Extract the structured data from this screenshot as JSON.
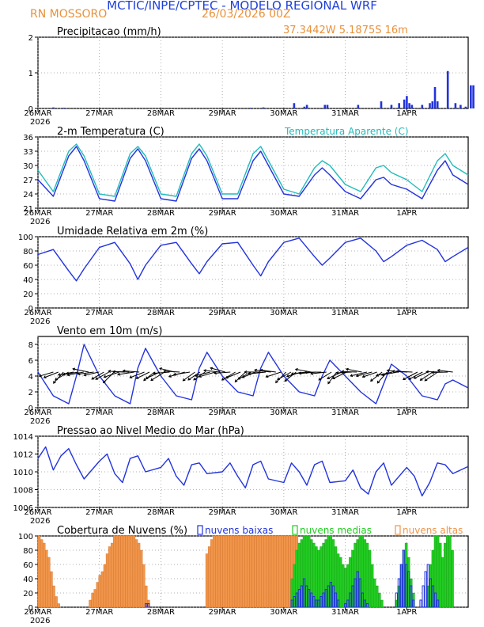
{
  "header": {
    "title": "MCTIC/INPE/CPTEC - MODELO REGIONAL WRF",
    "location": "RN MOSSORO",
    "run_date": "26/03/2026 00Z",
    "coords": "37.3442W 5.1875S 16m"
  },
  "colors": {
    "blue": "#2233dd",
    "cyan": "#22bbbb",
    "orange": "#f0954a",
    "green": "#22cc22",
    "header_blue": "#1f3fd9",
    "header_orange": "#e8913a",
    "grid": "#999999"
  },
  "time_axis": {
    "labels": [
      "26MAR",
      "27MAR",
      "28MAR",
      "29MAR",
      "30MAR",
      "31MAR",
      "1APR"
    ],
    "year": "2026",
    "hours_total": 168
  },
  "chart_data": [
    {
      "type": "bar",
      "id": "precip",
      "title": "Precipitacao (mm/h)",
      "ylim": [
        0,
        2
      ],
      "yticks": [
        0,
        1,
        2
      ],
      "bar_hours": [
        6,
        10,
        83,
        88,
        100,
        104,
        105,
        112,
        113,
        125,
        134,
        138,
        141,
        143,
        144,
        145,
        146,
        150,
        153,
        154,
        155,
        156,
        160,
        163,
        165,
        167,
        169,
        170
      ],
      "bar_values": [
        0.03,
        0.02,
        0.02,
        0.03,
        0.15,
        0.05,
        0.1,
        0.1,
        0.1,
        0.1,
        0.2,
        0.1,
        0.15,
        0.25,
        0.35,
        0.15,
        0.1,
        0.1,
        0.15,
        0.2,
        0.6,
        0.2,
        1.05,
        0.15,
        0.1,
        0.05,
        0.65,
        0.65
      ]
    },
    {
      "type": "line",
      "id": "temp",
      "title": "2-m Temperatura (C)",
      "legend": "Temperatura Aparente (C)",
      "ylim": [
        21,
        36
      ],
      "yticks": [
        21,
        24,
        27,
        30,
        33,
        36
      ],
      "x": [
        0,
        6,
        12,
        15,
        18,
        24,
        30,
        36,
        39,
        42,
        48,
        54,
        60,
        63,
        66,
        72,
        78,
        84,
        87,
        90,
        96,
        102,
        108,
        111,
        114,
        120,
        126,
        132,
        135,
        138,
        144,
        150,
        156,
        159,
        162,
        168
      ],
      "series": [
        {
          "name": "Temperatura",
          "color": "blue",
          "values": [
            27,
            23.5,
            32,
            34,
            31,
            23,
            22.5,
            31.5,
            33.5,
            31,
            23,
            22.5,
            31.5,
            33.5,
            31,
            23,
            23,
            31,
            33,
            30,
            24,
            23.5,
            28,
            29.5,
            28,
            24.5,
            23,
            27,
            27.5,
            26,
            25,
            23,
            29,
            31,
            28,
            26
          ]
        },
        {
          "name": "Temperatura Aparente",
          "color": "cyan",
          "values": [
            29,
            24.5,
            33,
            34.5,
            32,
            24,
            23.5,
            32.5,
            34,
            32,
            24,
            23.5,
            32.5,
            34.5,
            32,
            24,
            24,
            32.5,
            34,
            31,
            25,
            24,
            29.5,
            31,
            30,
            26,
            24.5,
            29.5,
            30,
            28.5,
            27,
            24.5,
            31,
            32.5,
            30,
            28
          ]
        }
      ]
    },
    {
      "type": "line",
      "id": "rh",
      "title": "Umidade Relativa em 2m (%)",
      "ylim": [
        0,
        100
      ],
      "yticks": [
        0,
        20,
        40,
        60,
        80,
        100
      ],
      "x": [
        0,
        6,
        12,
        15,
        18,
        24,
        30,
        36,
        39,
        42,
        48,
        54,
        60,
        63,
        66,
        72,
        78,
        84,
        87,
        90,
        96,
        102,
        108,
        111,
        114,
        120,
        126,
        132,
        135,
        138,
        144,
        150,
        156,
        159,
        162,
        168
      ],
      "series": [
        {
          "name": "Umidade",
          "color": "blue",
          "values": [
            75,
            82,
            52,
            38,
            55,
            85,
            92,
            62,
            40,
            60,
            88,
            92,
            62,
            48,
            65,
            90,
            92,
            60,
            45,
            65,
            92,
            98,
            72,
            60,
            70,
            92,
            98,
            80,
            65,
            72,
            88,
            95,
            82,
            65,
            72,
            85
          ]
        }
      ]
    },
    {
      "type": "line",
      "id": "wind",
      "title": "Vento em 10m (m/s)",
      "ylim": [
        0,
        9
      ],
      "yticks": [
        0,
        2,
        4,
        6,
        8
      ],
      "x": [
        0,
        6,
        12,
        15,
        18,
        24,
        30,
        36,
        39,
        42,
        48,
        54,
        60,
        63,
        66,
        72,
        78,
        84,
        87,
        90,
        96,
        102,
        108,
        111,
        114,
        120,
        126,
        132,
        135,
        138,
        144,
        150,
        156,
        159,
        162,
        168
      ],
      "series": [
        {
          "name": "Velocidade",
          "color": "blue",
          "values": [
            4.5,
            1.5,
            0.5,
            4,
            8,
            4,
            1.5,
            0.5,
            5,
            7.5,
            4,
            1.5,
            1,
            5,
            7,
            4,
            2,
            1.5,
            5,
            7,
            4,
            2,
            1.5,
            4,
            6,
            4,
            2,
            0.5,
            3,
            5.5,
            4,
            1.5,
            1,
            3,
            3.5,
            2.5
          ]
        }
      ],
      "vector_speed": [
        4.2,
        4.5,
        4.8,
        4.6,
        4.4,
        4.5,
        4.7,
        4.6,
        4.5,
        4.3
      ],
      "vector_dir_deg": [
        200,
        190,
        210,
        195,
        185,
        200,
        215,
        190,
        205,
        195
      ]
    },
    {
      "type": "line",
      "id": "pressure",
      "title": "Pressao ao Nivel Medio do Mar (hPa)",
      "ylim": [
        1006,
        1014
      ],
      "yticks": [
        1006,
        1008,
        1010,
        1012,
        1014
      ],
      "x": [
        0,
        3,
        6,
        9,
        12,
        15,
        18,
        24,
        27,
        30,
        33,
        36,
        39,
        42,
        48,
        51,
        54,
        57,
        60,
        63,
        66,
        72,
        75,
        78,
        81,
        84,
        87,
        90,
        96,
        99,
        102,
        105,
        108,
        111,
        114,
        120,
        123,
        126,
        129,
        132,
        135,
        138,
        144,
        147,
        150,
        153,
        156,
        159,
        162,
        168
      ],
      "series": [
        {
          "name": "Pressao",
          "color": "blue",
          "values": [
            1011.5,
            1012.8,
            1010.2,
            1011.8,
            1012.6,
            1010.8,
            1009.2,
            1011.2,
            1012,
            1009.8,
            1008.8,
            1011.5,
            1011.8,
            1010,
            1010.5,
            1011.5,
            1009.5,
            1008.5,
            1010.8,
            1011,
            1009.8,
            1010,
            1011,
            1009.5,
            1008.2,
            1010.8,
            1011.2,
            1009.2,
            1008.8,
            1011,
            1010,
            1008.5,
            1010.8,
            1011.2,
            1008.8,
            1009,
            1010.2,
            1008.2,
            1007.5,
            1010,
            1011,
            1008.5,
            1010.5,
            1009.5,
            1007.3,
            1008.8,
            1011,
            1010.8,
            1009.8,
            1010.6
          ]
        }
      ]
    },
    {
      "type": "bar",
      "id": "clouds",
      "title": "Cobertura de Nuvens (%)",
      "legend": [
        "nuvens baixas",
        "nuvens medias",
        "nuvens altas"
      ],
      "ylim": [
        0,
        100
      ],
      "yticks": [
        0,
        20,
        40,
        60,
        80,
        100
      ],
      "high_values": [
        100,
        95,
        90,
        80,
        70,
        50,
        30,
        15,
        5,
        0,
        0,
        0,
        0,
        0,
        0,
        0,
        0,
        0,
        0,
        0,
        0,
        10,
        20,
        25,
        35,
        45,
        50,
        60,
        75,
        85,
        90,
        100,
        100,
        100,
        100,
        100,
        100,
        100,
        100,
        100,
        95,
        90,
        80,
        60,
        30,
        10,
        0,
        0,
        0,
        0,
        0,
        0,
        0,
        0,
        0,
        0,
        0,
        0,
        0,
        0,
        0,
        0,
        0,
        0,
        0,
        0,
        0,
        0,
        0,
        75,
        85,
        95,
        100,
        100,
        100,
        100,
        100,
        100,
        100,
        100,
        100,
        100,
        100,
        100,
        100,
        100,
        100,
        100,
        100,
        100,
        100,
        100,
        100,
        100,
        100,
        100,
        100,
        100,
        100,
        100,
        100,
        100,
        100,
        100,
        100,
        100,
        100,
        80,
        60,
        40,
        30,
        25,
        20,
        15,
        10,
        10,
        15,
        20,
        30,
        40,
        60,
        70,
        50,
        30,
        20,
        10,
        5,
        5,
        0,
        0,
        0,
        0,
        0,
        0,
        0,
        0,
        0,
        0,
        0,
        0,
        0,
        0,
        0,
        0,
        0,
        0,
        0,
        0,
        0,
        0,
        0,
        0,
        0,
        0,
        0,
        0,
        0,
        0,
        0,
        0,
        0,
        0,
        0,
        0,
        0,
        0,
        0,
        0,
        0,
        0,
        0,
        0,
        0,
        0,
        0,
        0,
        0
      ],
      "mid_values": [
        0,
        0,
        0,
        0,
        0,
        0,
        0,
        0,
        0,
        0,
        0,
        0,
        0,
        0,
        0,
        0,
        0,
        0,
        0,
        0,
        0,
        0,
        0,
        0,
        0,
        0,
        0,
        0,
        0,
        0,
        0,
        0,
        0,
        0,
        0,
        0,
        0,
        0,
        0,
        0,
        0,
        0,
        0,
        0,
        0,
        0,
        0,
        0,
        0,
        0,
        0,
        0,
        0,
        0,
        0,
        0,
        0,
        0,
        0,
        0,
        0,
        0,
        0,
        0,
        0,
        0,
        0,
        0,
        0,
        0,
        0,
        0,
        0,
        0,
        0,
        0,
        0,
        0,
        0,
        0,
        0,
        0,
        0,
        0,
        0,
        0,
        0,
        0,
        0,
        0,
        0,
        0,
        0,
        0,
        0,
        0,
        0,
        0,
        0,
        0,
        0,
        0,
        0,
        0,
        40,
        60,
        80,
        90,
        95,
        100,
        100,
        100,
        95,
        90,
        85,
        80,
        85,
        90,
        95,
        100,
        100,
        95,
        85,
        75,
        70,
        60,
        55,
        60,
        70,
        80,
        90,
        95,
        100,
        100,
        95,
        90,
        80,
        60,
        40,
        30,
        20,
        10,
        0,
        0,
        0,
        0,
        0,
        10,
        30,
        60,
        80,
        90,
        70,
        40,
        20,
        0,
        0,
        0,
        0,
        0,
        30,
        60,
        80,
        100,
        100,
        90,
        70,
        90,
        100,
        100,
        80
      ],
      "low_values": [
        0,
        0,
        0,
        0,
        0,
        0,
        0,
        0,
        0,
        0,
        0,
        0,
        0,
        0,
        0,
        0,
        0,
        0,
        0,
        0,
        0,
        0,
        0,
        0,
        0,
        0,
        0,
        0,
        0,
        0,
        0,
        0,
        0,
        0,
        0,
        0,
        0,
        0,
        0,
        0,
        0,
        0,
        0,
        0,
        5,
        5,
        0,
        0,
        0,
        0,
        0,
        0,
        0,
        0,
        0,
        0,
        0,
        0,
        0,
        0,
        0,
        0,
        0,
        0,
        0,
        0,
        0,
        0,
        0,
        0,
        0,
        0,
        0,
        0,
        0,
        0,
        0,
        0,
        0,
        0,
        0,
        0,
        0,
        0,
        0,
        0,
        0,
        0,
        0,
        0,
        0,
        0,
        0,
        0,
        0,
        0,
        0,
        0,
        0,
        0,
        0,
        0,
        0,
        0,
        10,
        15,
        20,
        25,
        30,
        40,
        30,
        25,
        20,
        15,
        10,
        10,
        15,
        20,
        25,
        30,
        35,
        30,
        20,
        10,
        0,
        0,
        5,
        10,
        20,
        30,
        40,
        50,
        40,
        20,
        10,
        5,
        0,
        0,
        0,
        0,
        0,
        0,
        0,
        0,
        0,
        0,
        0,
        20,
        40,
        60,
        80,
        60,
        50,
        30,
        10,
        0,
        0,
        10,
        30,
        50,
        60,
        40,
        30,
        20,
        10,
        0,
        0,
        0,
        0,
        0,
        0
      ]
    }
  ]
}
